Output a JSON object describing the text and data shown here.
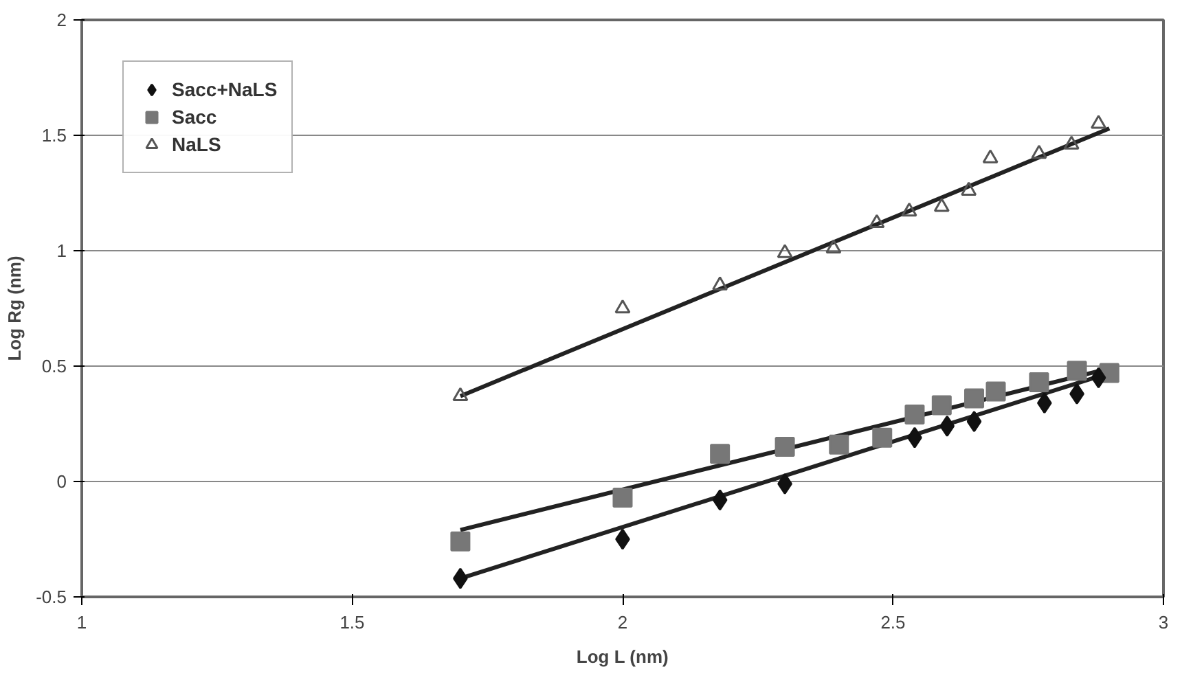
{
  "chart_data": {
    "type": "scatter",
    "xlabel": "Log L (nm)",
    "ylabel": "Log Rg (nm)",
    "xlim": [
      1,
      3
    ],
    "ylim": [
      -0.5,
      2
    ],
    "xticks": [
      1,
      1.5,
      2,
      2.5,
      3
    ],
    "yticks": [
      -0.5,
      0,
      0.5,
      1,
      1.5,
      2
    ],
    "grid": "y",
    "legend": "top left",
    "series": [
      {
        "name": "Sacc+NaLS",
        "color": "#111111",
        "marker": "diamond",
        "x": [
          1.7,
          2.0,
          2.18,
          2.3,
          2.54,
          2.6,
          2.65,
          2.78,
          2.84,
          2.88
        ],
        "values": [
          -0.42,
          -0.25,
          -0.08,
          -0.01,
          0.19,
          0.24,
          0.26,
          0.34,
          0.38,
          0.45
        ]
      },
      {
        "name": "Sacc",
        "color": "#777777",
        "marker": "square",
        "x": [
          1.7,
          2.0,
          2.18,
          2.3,
          2.4,
          2.48,
          2.54,
          2.59,
          2.65,
          2.69,
          2.77,
          2.84,
          2.9
        ],
        "values": [
          -0.26,
          -0.07,
          0.12,
          0.15,
          0.16,
          0.19,
          0.29,
          0.33,
          0.36,
          0.39,
          0.43,
          0.48,
          0.47
        ]
      },
      {
        "name": "NaLS",
        "color": "#555555",
        "marker": "triangle",
        "x": [
          1.7,
          2.0,
          2.18,
          2.3,
          2.39,
          2.47,
          2.53,
          2.59,
          2.64,
          2.68,
          2.77,
          2.83,
          2.88
        ],
        "values": [
          0.37,
          0.75,
          0.85,
          0.99,
          1.01,
          1.12,
          1.17,
          1.19,
          1.26,
          1.4,
          1.42,
          1.46,
          1.55
        ]
      },
      {
        "type": "line",
        "color": "#222222",
        "marker": "none",
        "x": [
          1.7,
          2.9
        ],
        "values": [
          -0.42,
          0.47
        ]
      },
      {
        "type": "line",
        "color": "#222222",
        "marker": "none",
        "x": [
          1.7,
          2.9
        ],
        "values": [
          -0.21,
          0.49
        ]
      },
      {
        "type": "line",
        "color": "#222222",
        "marker": "none",
        "x": [
          1.7,
          2.9
        ],
        "values": [
          0.37,
          1.53
        ]
      }
    ]
  }
}
